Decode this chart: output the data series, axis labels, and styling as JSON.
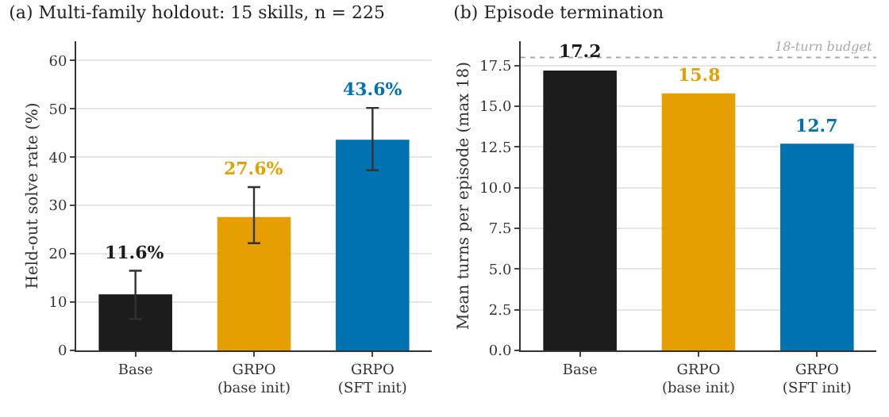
{
  "chart_data": [
    {
      "type": "bar",
      "title": "(a) Multi-family holdout: 15 skills, n = 225",
      "ylabel": "Held-out solve rate (%)",
      "categories": [
        "Base",
        "GRPO\n(base init)",
        "GRPO\n(SFT init)"
      ],
      "values": [
        11.6,
        27.6,
        43.6
      ],
      "colors": [
        "#1c1c1c",
        "#e69f00",
        "#0072b2"
      ],
      "errors": [
        [
          6.5,
          16.5
        ],
        [
          22.2,
          33.8
        ],
        [
          37.3,
          50.2
        ]
      ],
      "value_labels": [
        "11.6%",
        "27.6%",
        "43.6%"
      ],
      "ylim": [
        0,
        64
      ],
      "yticks": [
        0,
        10,
        20,
        30,
        40,
        50,
        60
      ],
      "grid": "y"
    },
    {
      "type": "bar",
      "title": "(b) Episode termination",
      "ylabel": "Mean turns per episode (max 18)",
      "categories": [
        "Base",
        "GRPO\n(base init)",
        "GRPO\n(SFT init)"
      ],
      "values": [
        17.2,
        15.8,
        12.7
      ],
      "colors": [
        "#1c1c1c",
        "#e69f00",
        "#0072b2"
      ],
      "data_labels": true,
      "ylim": [
        0,
        19
      ],
      "yticks": [
        {
          "value": 0,
          "label": "0.0"
        },
        {
          "value": 2.5,
          "label": "2.5"
        },
        {
          "value": 5,
          "label": "5.0"
        },
        {
          "value": 7.5,
          "label": "7.5"
        },
        {
          "value": 10,
          "label": "10.0"
        },
        {
          "value": 12.5,
          "label": "12.5"
        },
        {
          "value": 15,
          "label": "15.0"
        },
        {
          "value": 17.5,
          "label": "17.5"
        }
      ],
      "grid": "y",
      "ref_lines": [
        {
          "axis": "y",
          "value": 18,
          "label": "18-turn budget",
          "color": "#aaaaaa",
          "line_style": "dotted"
        }
      ]
    }
  ]
}
